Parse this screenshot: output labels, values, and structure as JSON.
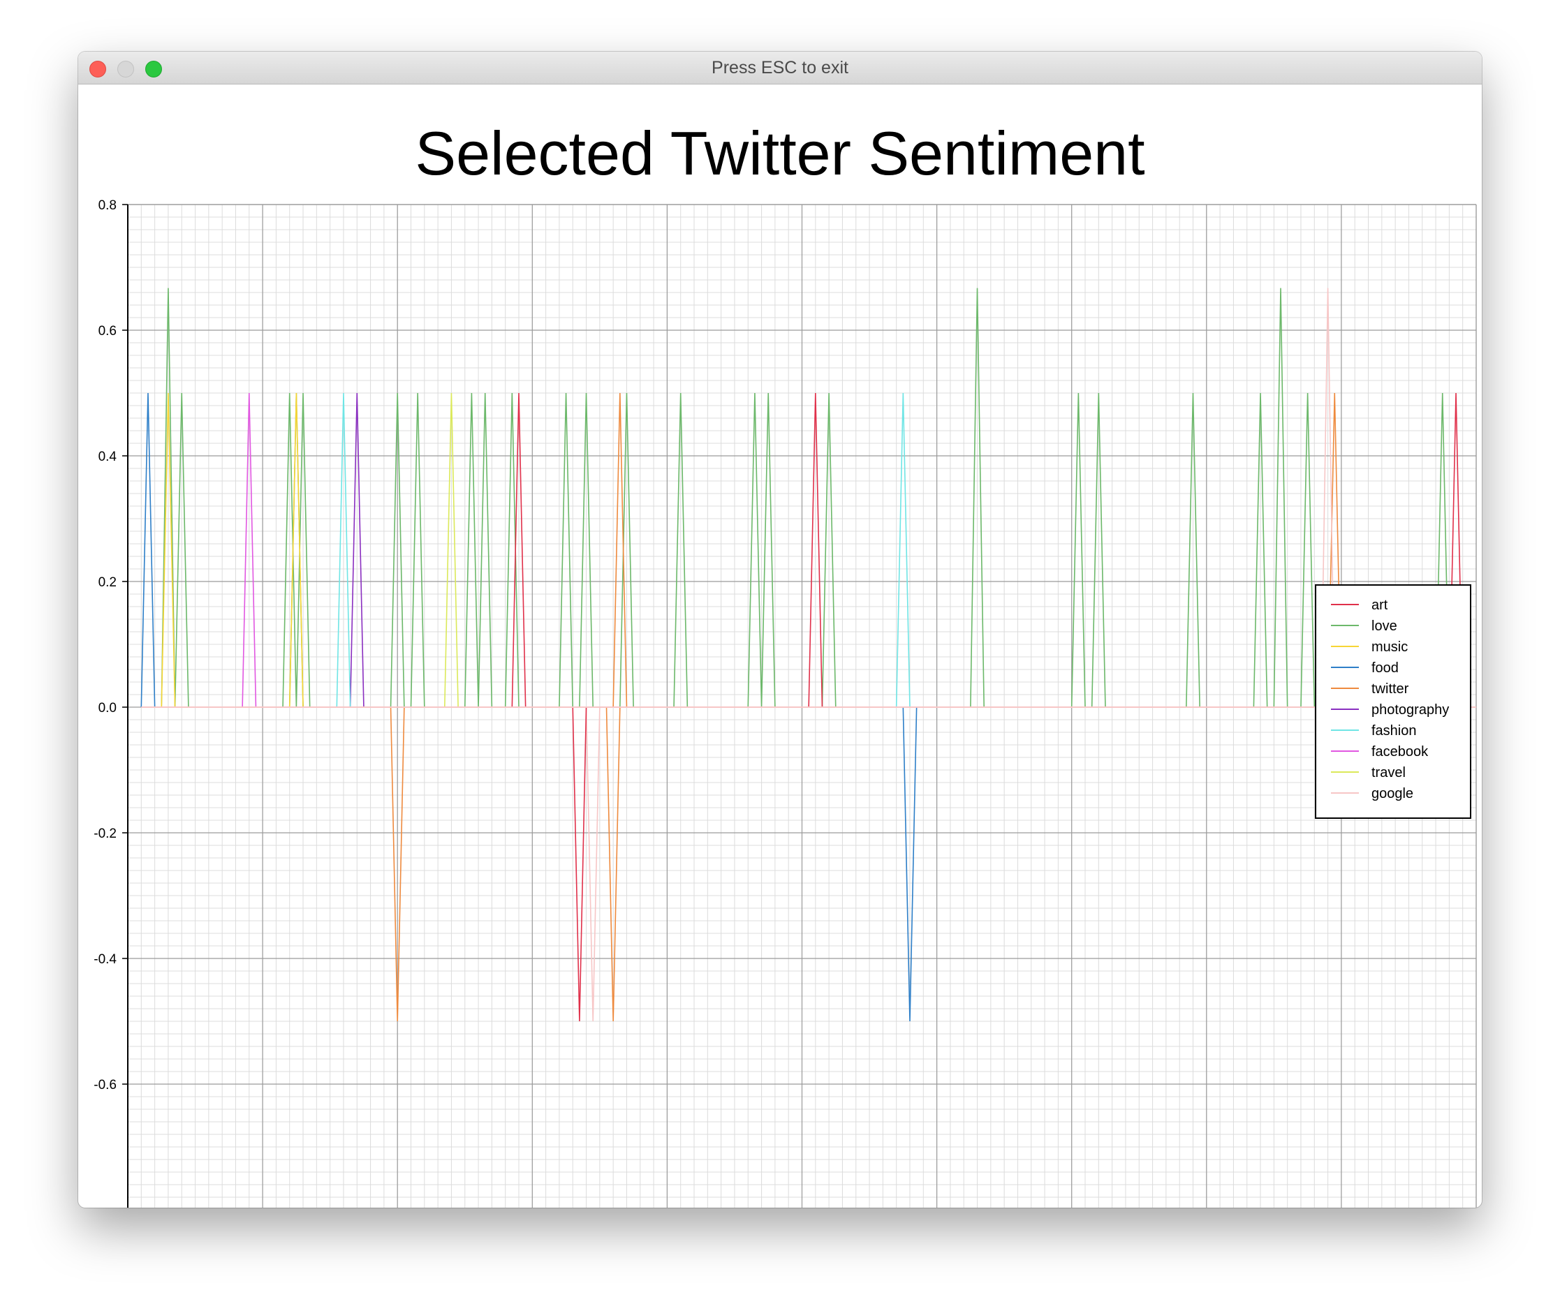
{
  "window": {
    "title": "Press ESC to exit"
  },
  "chart_data": {
    "type": "line",
    "title": "Selected Twitter Sentiment",
    "xlabel": "",
    "ylabel": "",
    "xlim": [
      0,
      200
    ],
    "ylim": [
      -0.8,
      0.8
    ],
    "x_ticks": [
      "20.0",
      "40.0",
      "60.0",
      "80.0",
      "100.0",
      "120.0",
      "140.0",
      "160.0",
      "180.0"
    ],
    "y_ticks": [
      "0.8",
      "0.6",
      "0.4",
      "0.2",
      "0.0",
      "-0.2",
      "-0.4",
      "-0.6"
    ],
    "grid": true,
    "legend_position": "right",
    "series": [
      {
        "name": "art",
        "color": "#e0304a",
        "points": [
          [
            67,
            -0.5
          ],
          [
            102,
            0.5
          ],
          [
            58,
            0.5
          ],
          [
            197,
            0.5
          ]
        ]
      },
      {
        "name": "love",
        "color": "#6cb86a",
        "points": [
          [
            6,
            0.667
          ],
          [
            8,
            0.5
          ],
          [
            24,
            0.5
          ],
          [
            25,
            0.5
          ],
          [
            26,
            0.5
          ],
          [
            40,
            0.5
          ],
          [
            43,
            0.5
          ],
          [
            51,
            0.5
          ],
          [
            53,
            0.5
          ],
          [
            57,
            0.5
          ],
          [
            65,
            0.5
          ],
          [
            68,
            0.5
          ],
          [
            74,
            0.5
          ],
          [
            82,
            0.5
          ],
          [
            93,
            0.5
          ],
          [
            95,
            0.5
          ],
          [
            104,
            0.5
          ],
          [
            126,
            0.667
          ],
          [
            141,
            0.5
          ],
          [
            144,
            0.5
          ],
          [
            158,
            0.5
          ],
          [
            168,
            0.5
          ],
          [
            171,
            0.667
          ],
          [
            175,
            0.5
          ],
          [
            195,
            0.5
          ]
        ]
      },
      {
        "name": "music",
        "color": "#f6d535",
        "points": [
          [
            6,
            0.5
          ],
          [
            25,
            0.5
          ]
        ]
      },
      {
        "name": "food",
        "color": "#2e7fc8",
        "points": [
          [
            3,
            0.5
          ],
          [
            116,
            -0.5
          ]
        ]
      },
      {
        "name": "twitter",
        "color": "#ee8a3e",
        "points": [
          [
            40,
            -0.5
          ],
          [
            72,
            -0.5
          ],
          [
            73,
            0.5
          ],
          [
            179,
            0.5
          ]
        ]
      },
      {
        "name": "photography",
        "color": "#8a2fc0",
        "points": [
          [
            34,
            0.5
          ]
        ]
      },
      {
        "name": "fashion",
        "color": "#6fe5e5",
        "points": [
          [
            32,
            0.5
          ],
          [
            115,
            0.5
          ]
        ]
      },
      {
        "name": "facebook",
        "color": "#e157e1",
        "points": [
          [
            18,
            0.5
          ]
        ]
      },
      {
        "name": "travel",
        "color": "#dbe95a",
        "points": [
          [
            48,
            0.5
          ]
        ]
      },
      {
        "name": "google",
        "color": "#f7c6c6",
        "points": [
          [
            69,
            -0.5
          ],
          [
            178,
            0.667
          ]
        ]
      }
    ]
  }
}
